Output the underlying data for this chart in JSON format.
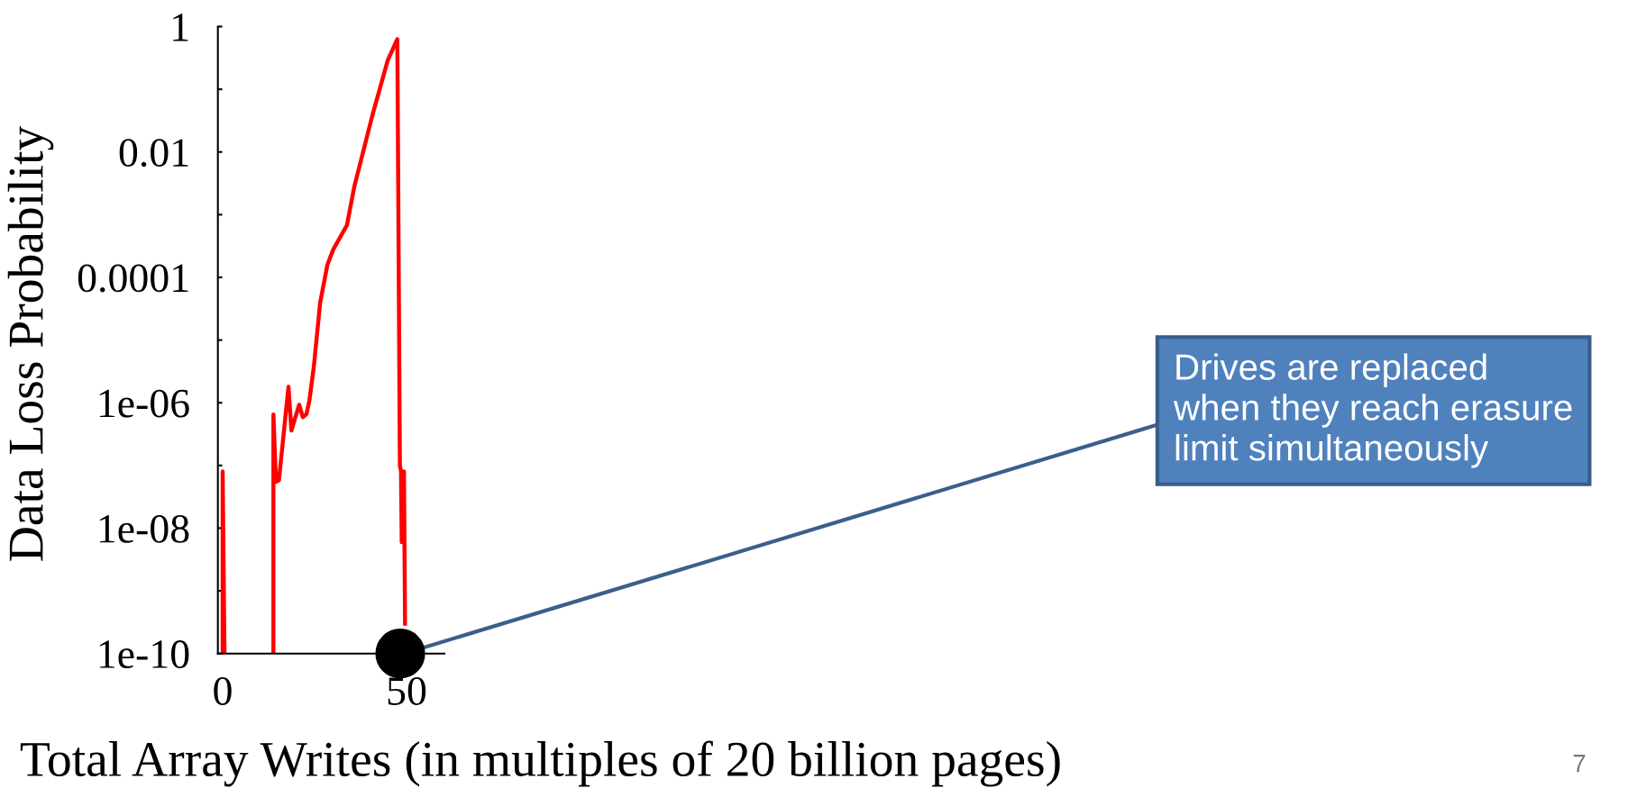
{
  "chart_data": {
    "type": "line",
    "xlabel": "Total Array Writes (in multiples of 20 billion pages)",
    "ylabel": "Data Loss Probability",
    "x": [
      0,
      0,
      0.5,
      null,
      13.8,
      13.8,
      14.5,
      15.3,
      17.9,
      18.7,
      20.8,
      21.8,
      22.8,
      23.6,
      24.8,
      26.5,
      28.5,
      30.1,
      33.8,
      35.8,
      40.8,
      44.9,
      47.5,
      48.2,
      48.5,
      48.7,
      48.9,
      49.1,
      49.3,
      49.6
    ],
    "series": [
      {
        "color": "#ff0000",
        "values": [
          1e-10,
          8e-08,
          1e-10,
          null,
          1e-10,
          6.5e-07,
          5.5e-08,
          5.8e-08,
          1.8e-06,
          3.6e-07,
          9.3e-07,
          5.9e-07,
          6.6e-07,
          1.1e-06,
          3.8e-06,
          3.9e-05,
          0.00016,
          0.00028,
          0.00068,
          0.0028,
          0.04,
          0.29,
          0.63,
          1e-07,
          8e-08,
          6e-09,
          8e-08,
          6e-09,
          8e-08,
          3e-10
        ]
      },
      {
        "type": "scatter",
        "x": [
          48.3
        ],
        "color": "#000000",
        "marker": "circle",
        "values": [
          1e-10
        ]
      }
    ],
    "log": "y",
    "xlim": [
      -1.3,
      60.3
    ],
    "xticks": [
      0,
      50
    ],
    "ylim": [
      1e-10,
      1
    ],
    "yticks": [
      {
        "value": 1e-10,
        "label": "1e-10"
      },
      {
        "value": 1e-09,
        "label": null
      },
      {
        "value": 1e-08,
        "label": "1e-08"
      },
      {
        "value": 1e-07,
        "label": null
      },
      {
        "value": 1e-06,
        "label": "1e-06"
      },
      {
        "value": 1e-05,
        "label": null
      },
      {
        "value": 0.0001,
        "label": "0.0001"
      },
      {
        "value": 0.001,
        "label": null
      },
      {
        "value": 0.01,
        "label": "0.01"
      },
      {
        "value": 0.1,
        "label": null
      },
      1
    ],
    "grid": false,
    "legend": false,
    "marker": "none",
    "line_style": "solid",
    "annotations": [
      "Drives are replaced\nwhen they reach erasure\nlimit simultaneously",
      "7"
    ]
  }
}
